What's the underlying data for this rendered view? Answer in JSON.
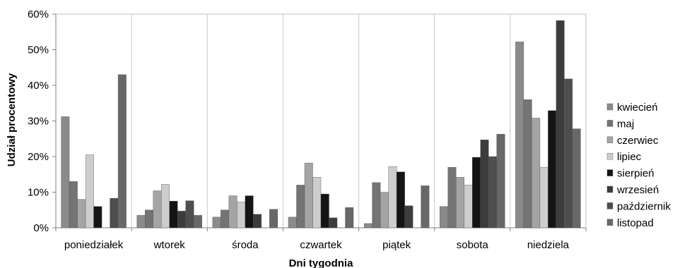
{
  "chart_data": {
    "type": "bar",
    "xlabel": "Dni tygodnia",
    "ylabel": "Udział procentowy",
    "ylim": [
      0,
      60
    ],
    "yticks": [
      "0%",
      "10%",
      "20%",
      "30%",
      "40%",
      "50%",
      "60%"
    ],
    "grid": "vertical separators between categories",
    "legend_position": "right",
    "categories": [
      "poniedziałek",
      "wtorek",
      "środa",
      "czwartek",
      "piątek",
      "sobota",
      "niedziela"
    ],
    "series": [
      {
        "name": "kwiecień",
        "color": "#8a8a8a",
        "values": [
          31.2,
          3.5,
          3.0,
          3.0,
          1.2,
          6.0,
          52.2
        ]
      },
      {
        "name": "maj",
        "color": "#747474",
        "values": [
          13.0,
          5.0,
          5.0,
          12.0,
          12.7,
          17.0,
          36.0
        ]
      },
      {
        "name": "czerwiec",
        "color": "#a4a4a4",
        "values": [
          8.0,
          10.4,
          9.0,
          18.2,
          10.0,
          14.2,
          30.8
        ]
      },
      {
        "name": "lipiec",
        "color": "#cdcdcd",
        "values": [
          20.5,
          12.2,
          7.3,
          14.2,
          17.2,
          12.0,
          17.0
        ]
      },
      {
        "name": "sierpień",
        "color": "#141414",
        "values": [
          6.0,
          7.5,
          9.0,
          9.5,
          15.7,
          19.8,
          32.9
        ]
      },
      {
        "name": "wrzesień",
        "color": "#3c3c3c",
        "values": [
          0,
          4.7,
          3.8,
          2.8,
          6.2,
          24.7,
          58.2
        ]
      },
      {
        "name": "październik",
        "color": "#4e4e4e",
        "values": [
          8.3,
          7.6,
          0,
          0,
          0,
          20.0,
          41.8
        ]
      },
      {
        "name": "listopad",
        "color": "#686868",
        "values": [
          43.0,
          3.5,
          5.2,
          5.7,
          11.8,
          26.3,
          27.8
        ]
      }
    ]
  }
}
